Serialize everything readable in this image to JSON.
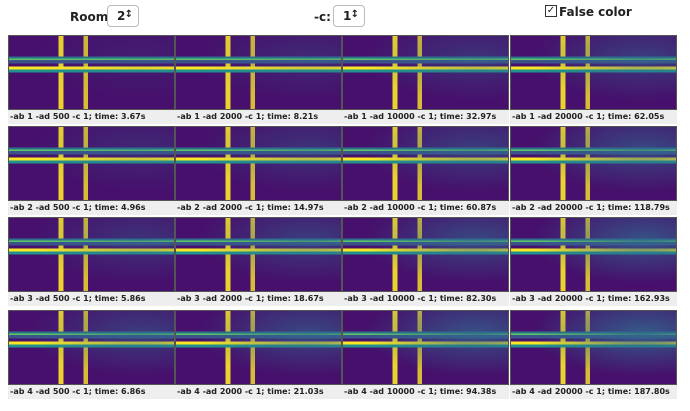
{
  "controls": {
    "room_label": "Room:",
    "room_value": "2",
    "c_label": "-c:",
    "c_value": "1",
    "false_color_label": "False color"
  },
  "grid": {
    "rows": [
      [
        "-ab 1 -ad 500 -c 1; time: 3.67s",
        "-ab 1 -ad 2000 -c 1; time: 8.21s",
        "-ab 1 -ad 10000 -c 1; time: 32.97s",
        "-ab 1 -ad 20000 -c 1; time: 62.05s"
      ],
      [
        "-ab 2 -ad 500 -c 1; time: 4.96s",
        "-ab 2 -ad 2000 -c 1; time: 14.97s",
        "-ab 2 -ad 10000 -c 1; time: 60.87s",
        "-ab 2 -ad 20000 -c 1; time: 118.79s"
      ],
      [
        "-ab 3 -ad 500 -c 1; time: 5.86s",
        "-ab 3 -ad 2000 -c 1; time: 18.67s",
        "-ab 3 -ad 10000 -c 1; time: 82.30s",
        "-ab 3 -ad 20000 -c 1; time: 162.93s"
      ],
      [
        "-ab 4 -ad 500 -c 1; time: 6.86s",
        "-ab 4 -ad 2000 -c 1; time: 21.03s",
        "-ab 4 -ad 10000 -c 1; time: 94.38s",
        "-ab 4 -ad 20000 -c 1; time: 187.80s"
      ]
    ]
  }
}
